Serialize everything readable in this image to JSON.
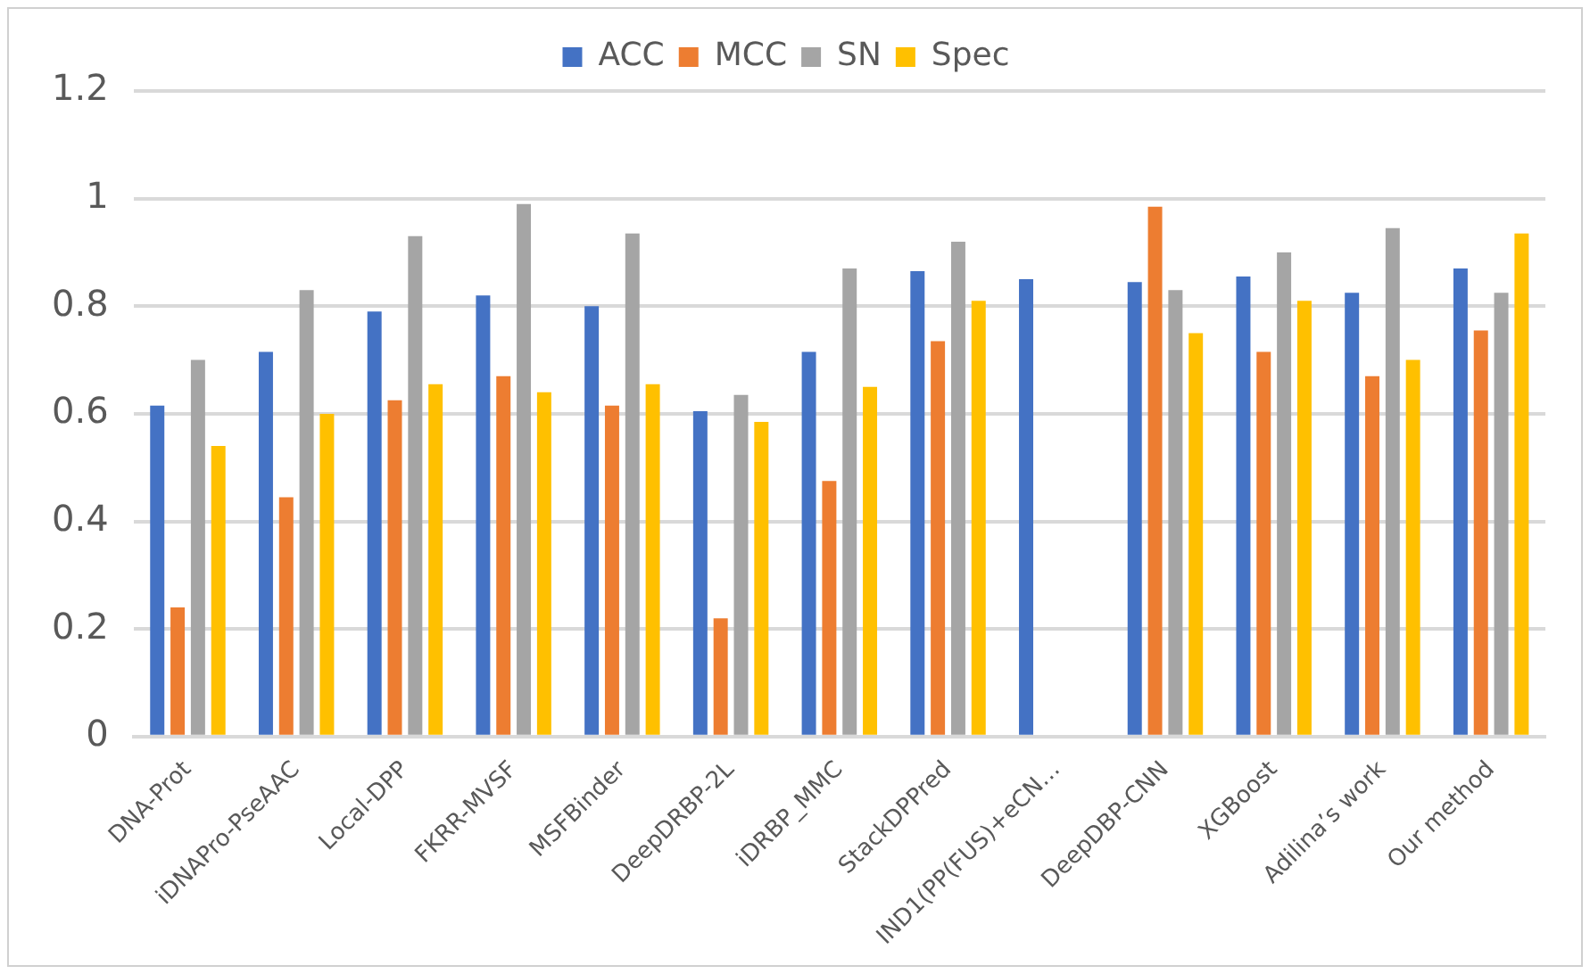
{
  "chart_data": {
    "type": "bar",
    "categories": [
      "DNA-Prot",
      "iDNAPro-PseAAC",
      "Local-DPP",
      "FKRR-MVSF",
      "MSFBinder",
      "DeepDRBP-2L",
      "iDRBP_MMC",
      "StackDPPred",
      "IND1(PP(FUS)+eCN…",
      "DeepDBP-CNN",
      "XGBoost",
      "Adilina’s work",
      "Our method"
    ],
    "series": [
      {
        "name": "ACC",
        "color": "#4472c4",
        "values": [
          0.615,
          0.715,
          0.79,
          0.82,
          0.8,
          0.605,
          0.715,
          0.865,
          0.85,
          0.845,
          0.855,
          0.825,
          0.87
        ]
      },
      {
        "name": "MCC",
        "color": "#ed7d31",
        "values": [
          0.24,
          0.445,
          0.625,
          0.67,
          0.615,
          0.22,
          0.475,
          0.735,
          null,
          0.985,
          0.715,
          0.67,
          0.755
        ]
      },
      {
        "name": "SN",
        "color": "#a5a5a5",
        "values": [
          0.7,
          0.83,
          0.93,
          0.99,
          0.935,
          0.635,
          0.87,
          0.92,
          null,
          0.83,
          0.9,
          0.945,
          0.825
        ]
      },
      {
        "name": "Spec",
        "color": "#ffc000",
        "values": [
          0.54,
          0.6,
          0.655,
          0.64,
          0.655,
          0.585,
          0.65,
          0.81,
          null,
          0.75,
          0.81,
          0.7,
          0.935
        ]
      }
    ],
    "ylim": [
      0,
      1.2
    ],
    "yticks": [
      0,
      0.2,
      0.4,
      0.6,
      0.8,
      1,
      1.2
    ],
    "grid": "y",
    "legend": "top"
  }
}
